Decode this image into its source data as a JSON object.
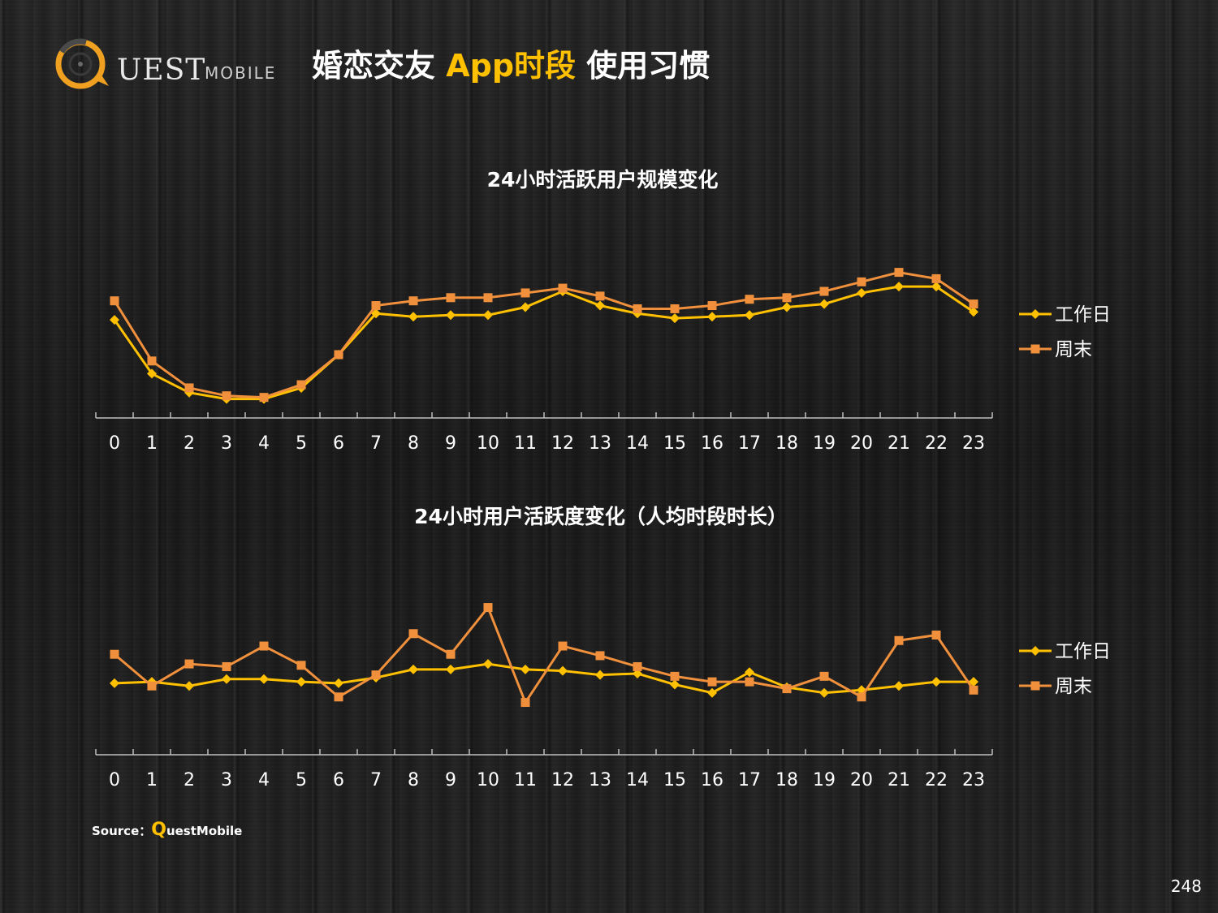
{
  "header": {
    "logo_text": "UEST",
    "logo_sub": "MOBILE",
    "title_part1": "婚恋交友 ",
    "title_accent": "App时段",
    "title_part2": " 使用习惯"
  },
  "colors": {
    "workday": "#ffc000",
    "weekend": "#f0903c",
    "background": "#1c1c1c",
    "axis": "#bfbfbf"
  },
  "chart_data": [
    {
      "type": "line",
      "title": "24小时活跃用户规模变化",
      "x": [
        "0",
        "1",
        "2",
        "3",
        "4",
        "5",
        "6",
        "7",
        "8",
        "9",
        "10",
        "11",
        "12",
        "13",
        "14",
        "15",
        "16",
        "17",
        "18",
        "19",
        "20",
        "21",
        "22",
        "23"
      ],
      "series": [
        {
          "name": "工作日",
          "values": [
            62,
            28,
            16,
            12,
            12,
            19,
            40,
            66,
            64,
            65,
            65,
            70,
            80,
            71,
            66,
            63,
            64,
            65,
            70,
            72,
            79,
            83,
            83,
            67
          ]
        },
        {
          "name": "周末",
          "values": [
            74,
            36,
            19,
            14,
            13,
            21,
            40,
            71,
            74,
            76,
            76,
            79,
            82,
            77,
            69,
            69,
            71,
            75,
            76,
            80,
            86,
            92,
            88,
            72
          ]
        }
      ],
      "y_axis_visible": false,
      "grid": false,
      "legend_position": "right"
    },
    {
      "type": "line",
      "title": "24小时用户活跃度变化（人均时段时长）",
      "x": [
        "0",
        "1",
        "2",
        "3",
        "4",
        "5",
        "6",
        "7",
        "8",
        "9",
        "10",
        "11",
        "12",
        "13",
        "14",
        "15",
        "16",
        "17",
        "18",
        "19",
        "20",
        "21",
        "22",
        "23"
      ],
      "series": [
        {
          "name": "工作日",
          "values": [
            52,
            53,
            50,
            55,
            55,
            53,
            52,
            56,
            62,
            62,
            66,
            62,
            61,
            58,
            59,
            51,
            45,
            60,
            49,
            45,
            47,
            50,
            53,
            53
          ]
        },
        {
          "name": "周末",
          "values": [
            73,
            50,
            66,
            64,
            79,
            65,
            42,
            58,
            88,
            73,
            107,
            38,
            79,
            72,
            64,
            57,
            53,
            53,
            48,
            57,
            42,
            83,
            87,
            47
          ]
        }
      ],
      "y_axis_visible": false,
      "grid": false,
      "legend_position": "right"
    }
  ],
  "footer": {
    "source_label": "Source：",
    "source_q": "Q",
    "source_rest": "uestMobile",
    "page_number": "248"
  }
}
